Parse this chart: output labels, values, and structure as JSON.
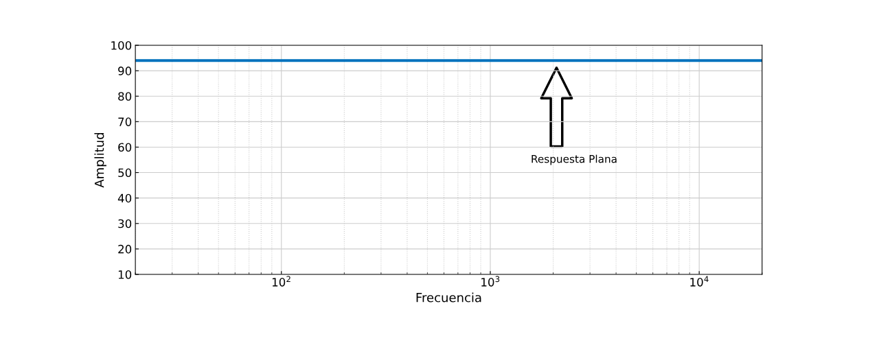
{
  "chart_data": {
    "type": "line",
    "xlabel": "Frecuencia",
    "ylabel": "Amplitud",
    "x": [
      20,
      20000
    ],
    "series": [
      {
        "color": "#0072bd",
        "values": [
          94,
          94
        ]
      }
    ],
    "log": "x",
    "xlim": [
      20,
      20000
    ],
    "xticks": [
      {
        "value": 100,
        "label": "10$^{2}$"
      },
      {
        "value": 1000,
        "label": "10$^{3}$"
      },
      {
        "value": 10000,
        "label": "10$^{4}$"
      }
    ],
    "ylim": [
      10,
      100
    ],
    "yticks": [
      10,
      20,
      30,
      40,
      50,
      60,
      70,
      80,
      90,
      100
    ],
    "grid": true,
    "line_style": "solid",
    "marker": "none",
    "annotations": [
      "Respuesta Plana"
    ]
  }
}
